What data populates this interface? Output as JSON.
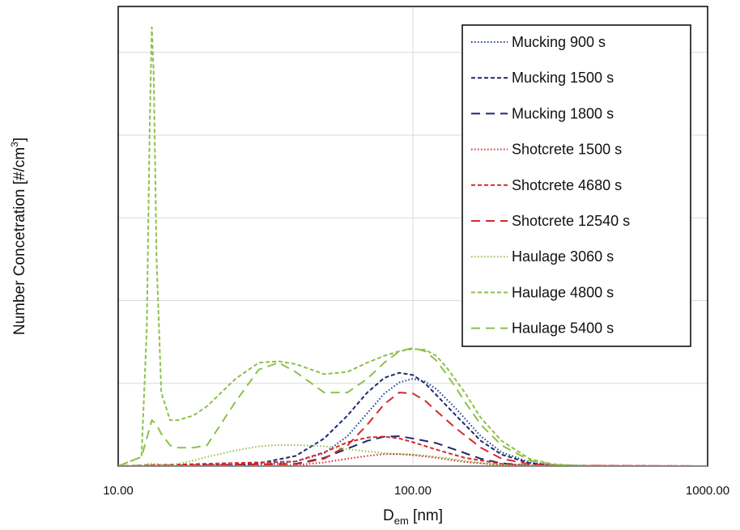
{
  "chart_data": {
    "type": "line",
    "title": "",
    "xlabel": "D",
    "xlabel_sub": "em",
    "xlabel_unit": " [nm]",
    "ylabel": "Number Concetration [#/cm",
    "ylabel_sup": "3",
    "ylabel_close": "]",
    "xscale": "log",
    "xlim": [
      10,
      1000
    ],
    "x_tick_labels": [
      "10.00",
      "100.00",
      "1000.00"
    ],
    "y_tick_labels": [],
    "ylim": [
      0,
      1
    ],
    "grid": {
      "vertical": true,
      "horizontal": true,
      "h_lines": [
        0.18,
        0.36,
        0.54,
        0.72,
        0.9
      ]
    },
    "legend_position": "top-right",
    "series": [
      {
        "name": "Mucking 900 s",
        "color": "#1f3a8a",
        "dash": "dotted",
        "x": [
          10,
          30,
          40,
          50,
          60,
          70,
          80,
          90,
          100,
          110,
          120,
          140,
          170,
          200,
          250,
          300,
          400,
          1000
        ],
        "y": [
          0,
          0.003,
          0.01,
          0.028,
          0.065,
          0.115,
          0.158,
          0.182,
          0.19,
          0.184,
          0.168,
          0.125,
          0.065,
          0.03,
          0.008,
          0.002,
          0,
          0
        ]
      },
      {
        "name": "Mucking 1500 s",
        "color": "#1b2a6b",
        "dash": "short",
        "x": [
          10,
          25,
          30,
          40,
          50,
          60,
          70,
          80,
          90,
          100,
          110,
          120,
          140,
          170,
          200,
          250,
          300,
          400,
          1000
        ],
        "y": [
          0,
          0.002,
          0.006,
          0.022,
          0.06,
          0.11,
          0.16,
          0.192,
          0.203,
          0.198,
          0.18,
          0.155,
          0.11,
          0.055,
          0.025,
          0.006,
          0.002,
          0,
          0
        ]
      },
      {
        "name": "Mucking 1800 s",
        "color": "#1b2a6b",
        "dash": "long",
        "x": [
          10,
          40,
          50,
          60,
          70,
          80,
          90,
          100,
          120,
          140,
          170,
          200,
          250,
          300,
          1000
        ],
        "y": [
          0,
          0.005,
          0.018,
          0.038,
          0.055,
          0.064,
          0.065,
          0.06,
          0.05,
          0.035,
          0.016,
          0.006,
          0.001,
          0,
          0
        ]
      },
      {
        "name": "Shotcrete 1500 s",
        "color": "#d42a2a",
        "dash": "dotted",
        "x": [
          10,
          40,
          50,
          60,
          70,
          80,
          90,
          100,
          120,
          150,
          200,
          1000
        ],
        "y": [
          0,
          0.002,
          0.008,
          0.016,
          0.022,
          0.026,
          0.026,
          0.024,
          0.018,
          0.009,
          0.002,
          0
        ]
      },
      {
        "name": "Shotcrete 4680 s",
        "color": "#d42a2a",
        "dash": "short",
        "x": [
          10,
          40,
          50,
          60,
          70,
          80,
          90,
          100,
          120,
          150,
          200,
          250,
          1000
        ],
        "y": [
          0,
          0.01,
          0.03,
          0.052,
          0.062,
          0.064,
          0.06,
          0.052,
          0.036,
          0.018,
          0.005,
          0.001,
          0
        ]
      },
      {
        "name": "Shotcrete 12540 s",
        "color": "#d42a2a",
        "dash": "long",
        "x": [
          10,
          40,
          50,
          60,
          70,
          80,
          90,
          100,
          110,
          120,
          140,
          170,
          200,
          250,
          300,
          1000
        ],
        "y": [
          0,
          0.004,
          0.016,
          0.045,
          0.09,
          0.135,
          0.16,
          0.158,
          0.142,
          0.12,
          0.082,
          0.04,
          0.016,
          0.004,
          0.001,
          0
        ]
      },
      {
        "name": "Haulage 3060 s",
        "color": "#8cc04a",
        "dash": "dotted",
        "x": [
          10,
          12,
          12.6,
          13,
          13.4,
          14,
          15,
          16,
          18,
          20,
          25,
          30,
          35,
          40,
          50,
          60,
          70,
          80,
          90,
          100,
          110,
          120,
          130,
          140,
          160,
          180,
          200,
          250,
          300,
          400,
          1000
        ],
        "y": [
          0,
          0.002,
          0.005,
          0.006,
          0.005,
          0.003,
          0.002,
          0.005,
          0.012,
          0.02,
          0.034,
          0.043,
          0.046,
          0.046,
          0.043,
          0.037,
          0.032,
          0.028,
          0.026,
          0.025,
          0.023,
          0.02,
          0.017,
          0.014,
          0.009,
          0.005,
          0.003,
          0.001,
          0,
          0,
          0
        ]
      },
      {
        "name": "Haulage 4800 s",
        "color": "#8cc04a",
        "dash": "short",
        "x": [
          10,
          12,
          12.5,
          12.8,
          13,
          13.2,
          13.5,
          14,
          15,
          16,
          18,
          20,
          25,
          30,
          35,
          40,
          50,
          60,
          70,
          80,
          90,
          100,
          110,
          120,
          130,
          150,
          170,
          200,
          250,
          300,
          400,
          1000
        ],
        "y": [
          0,
          0.02,
          0.3,
          0.75,
          0.955,
          0.85,
          0.45,
          0.16,
          0.1,
          0.1,
          0.11,
          0.13,
          0.19,
          0.225,
          0.228,
          0.222,
          0.2,
          0.205,
          0.225,
          0.24,
          0.25,
          0.255,
          0.253,
          0.24,
          0.215,
          0.16,
          0.105,
          0.055,
          0.015,
          0.004,
          0,
          0
        ]
      },
      {
        "name": "Haulage 5400 s",
        "color": "#8cc04a",
        "dash": "long",
        "x": [
          10,
          12,
          12.5,
          13,
          13.5,
          14,
          15,
          16,
          18,
          20,
          25,
          30,
          35,
          40,
          50,
          60,
          70,
          80,
          90,
          100,
          110,
          120,
          130,
          140,
          150,
          170,
          200,
          250,
          300,
          400,
          1000
        ],
        "y": [
          0,
          0.02,
          0.06,
          0.1,
          0.09,
          0.07,
          0.045,
          0.04,
          0.04,
          0.045,
          0.14,
          0.21,
          0.225,
          0.205,
          0.16,
          0.16,
          0.19,
          0.225,
          0.25,
          0.257,
          0.25,
          0.23,
          0.2,
          0.17,
          0.14,
          0.09,
          0.045,
          0.012,
          0.003,
          0,
          0
        ]
      }
    ]
  }
}
